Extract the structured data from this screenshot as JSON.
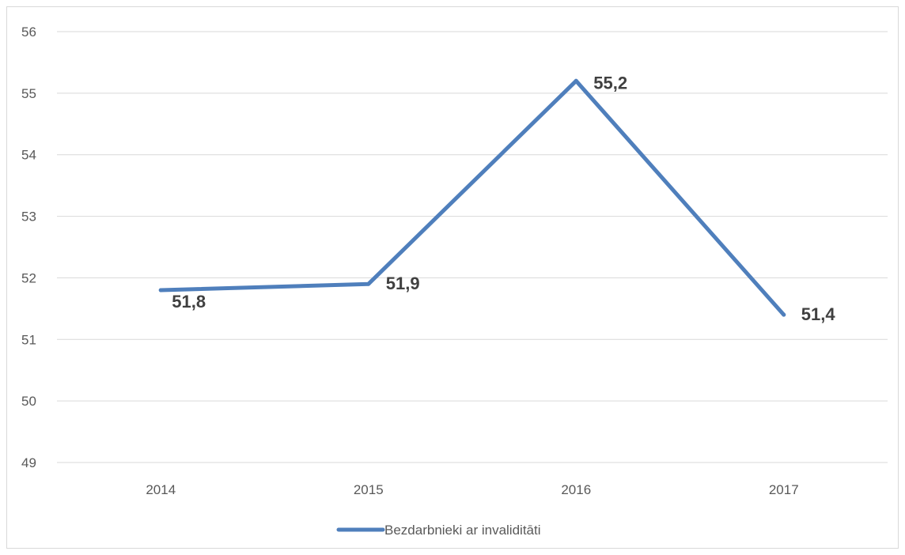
{
  "chart_data": {
    "type": "line",
    "categories": [
      "2014",
      "2015",
      "2016",
      "2017"
    ],
    "series": [
      {
        "name": "Bezdarbnieki ar invaliditāti",
        "values": [
          51.8,
          51.9,
          55.2,
          51.4
        ],
        "data_labels": [
          "51,8",
          "51,9",
          "55,2",
          "51,4"
        ],
        "color": "#4f7fbc"
      }
    ],
    "yticks": [
      "49",
      "50",
      "51",
      "52",
      "53",
      "54",
      "55",
      "56"
    ],
    "ylim": [
      49,
      56
    ],
    "grid": true,
    "legend_position": "bottom",
    "title": "",
    "xlabel": "",
    "ylabel": ""
  }
}
